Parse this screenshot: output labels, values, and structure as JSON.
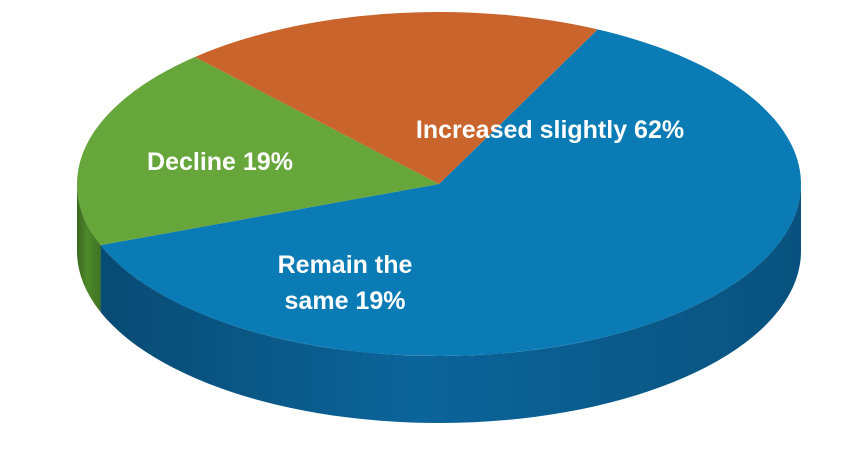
{
  "chart_data": {
    "type": "pie",
    "style": "3d",
    "slices": [
      {
        "label": "Increased slightly 62%",
        "value": 62,
        "color": "#0a7bb5",
        "side_color": "#0b649a"
      },
      {
        "label": "Remain the same 19%",
        "label_lines": [
          "Remain the",
          "same 19%"
        ],
        "value": 19,
        "color": "#67a63a",
        "side_color": "#4d8a2a"
      },
      {
        "label": "Decline 19%",
        "value": 19,
        "color": "#c9652c",
        "side_color": "#9c4a1c"
      }
    ]
  }
}
